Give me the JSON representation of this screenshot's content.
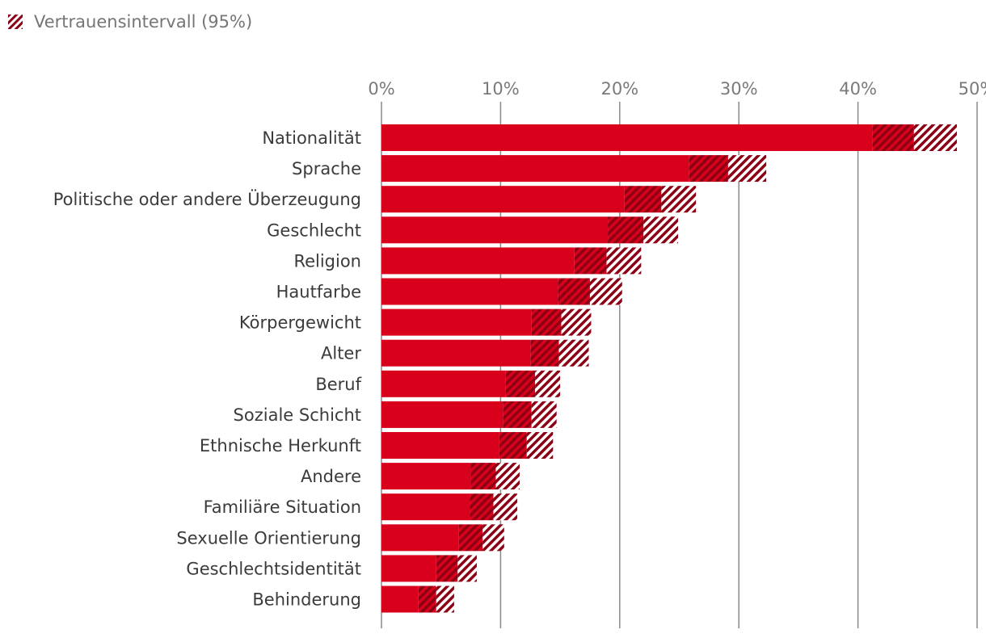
{
  "legend": {
    "label": "Vertrauensintervall (95%)",
    "icon": "hatched-square-icon"
  },
  "colors": {
    "bar": "#d9001b",
    "ci": "#8c0014",
    "grid": "#8a8a8a",
    "hatch_bg": "#ffffff"
  },
  "chart_data": {
    "type": "bar",
    "orientation": "horizontal",
    "title": "",
    "xlabel": "",
    "ylabel": "",
    "xlim": [
      0,
      50
    ],
    "ticks": [
      0,
      10,
      20,
      30,
      40,
      50
    ],
    "tick_labels": [
      "0%",
      "10%",
      "20%",
      "30%",
      "40%",
      "50%"
    ],
    "categories": [
      "Nationalität",
      "Sprache",
      "Politische oder andere Überzeugung",
      "Geschlecht",
      "Religion",
      "Hautfarbe",
      "Körpergewicht",
      "Alter",
      "Beruf",
      "Soziale Schicht",
      "Ethnische Herkunft",
      "Andere",
      "Familiäre Situation",
      "Sexuelle Orientierung",
      "Geschlechtsidentität",
      "Behinderung"
    ],
    "ci_low": [
      41.2,
      25.8,
      20.4,
      19.0,
      16.2,
      14.8,
      12.6,
      12.5,
      10.4,
      10.2,
      9.9,
      7.5,
      7.4,
      6.5,
      4.6,
      3.1
    ],
    "values": [
      44.7,
      29.1,
      23.5,
      22.0,
      18.9,
      17.5,
      15.1,
      14.9,
      12.9,
      12.6,
      12.2,
      9.6,
      9.4,
      8.5,
      6.4,
      4.6
    ],
    "ci_high": [
      48.3,
      32.3,
      26.4,
      24.9,
      21.8,
      20.2,
      17.6,
      17.4,
      15.0,
      14.7,
      14.4,
      11.6,
      11.4,
      10.3,
      8.0,
      6.1
    ]
  }
}
